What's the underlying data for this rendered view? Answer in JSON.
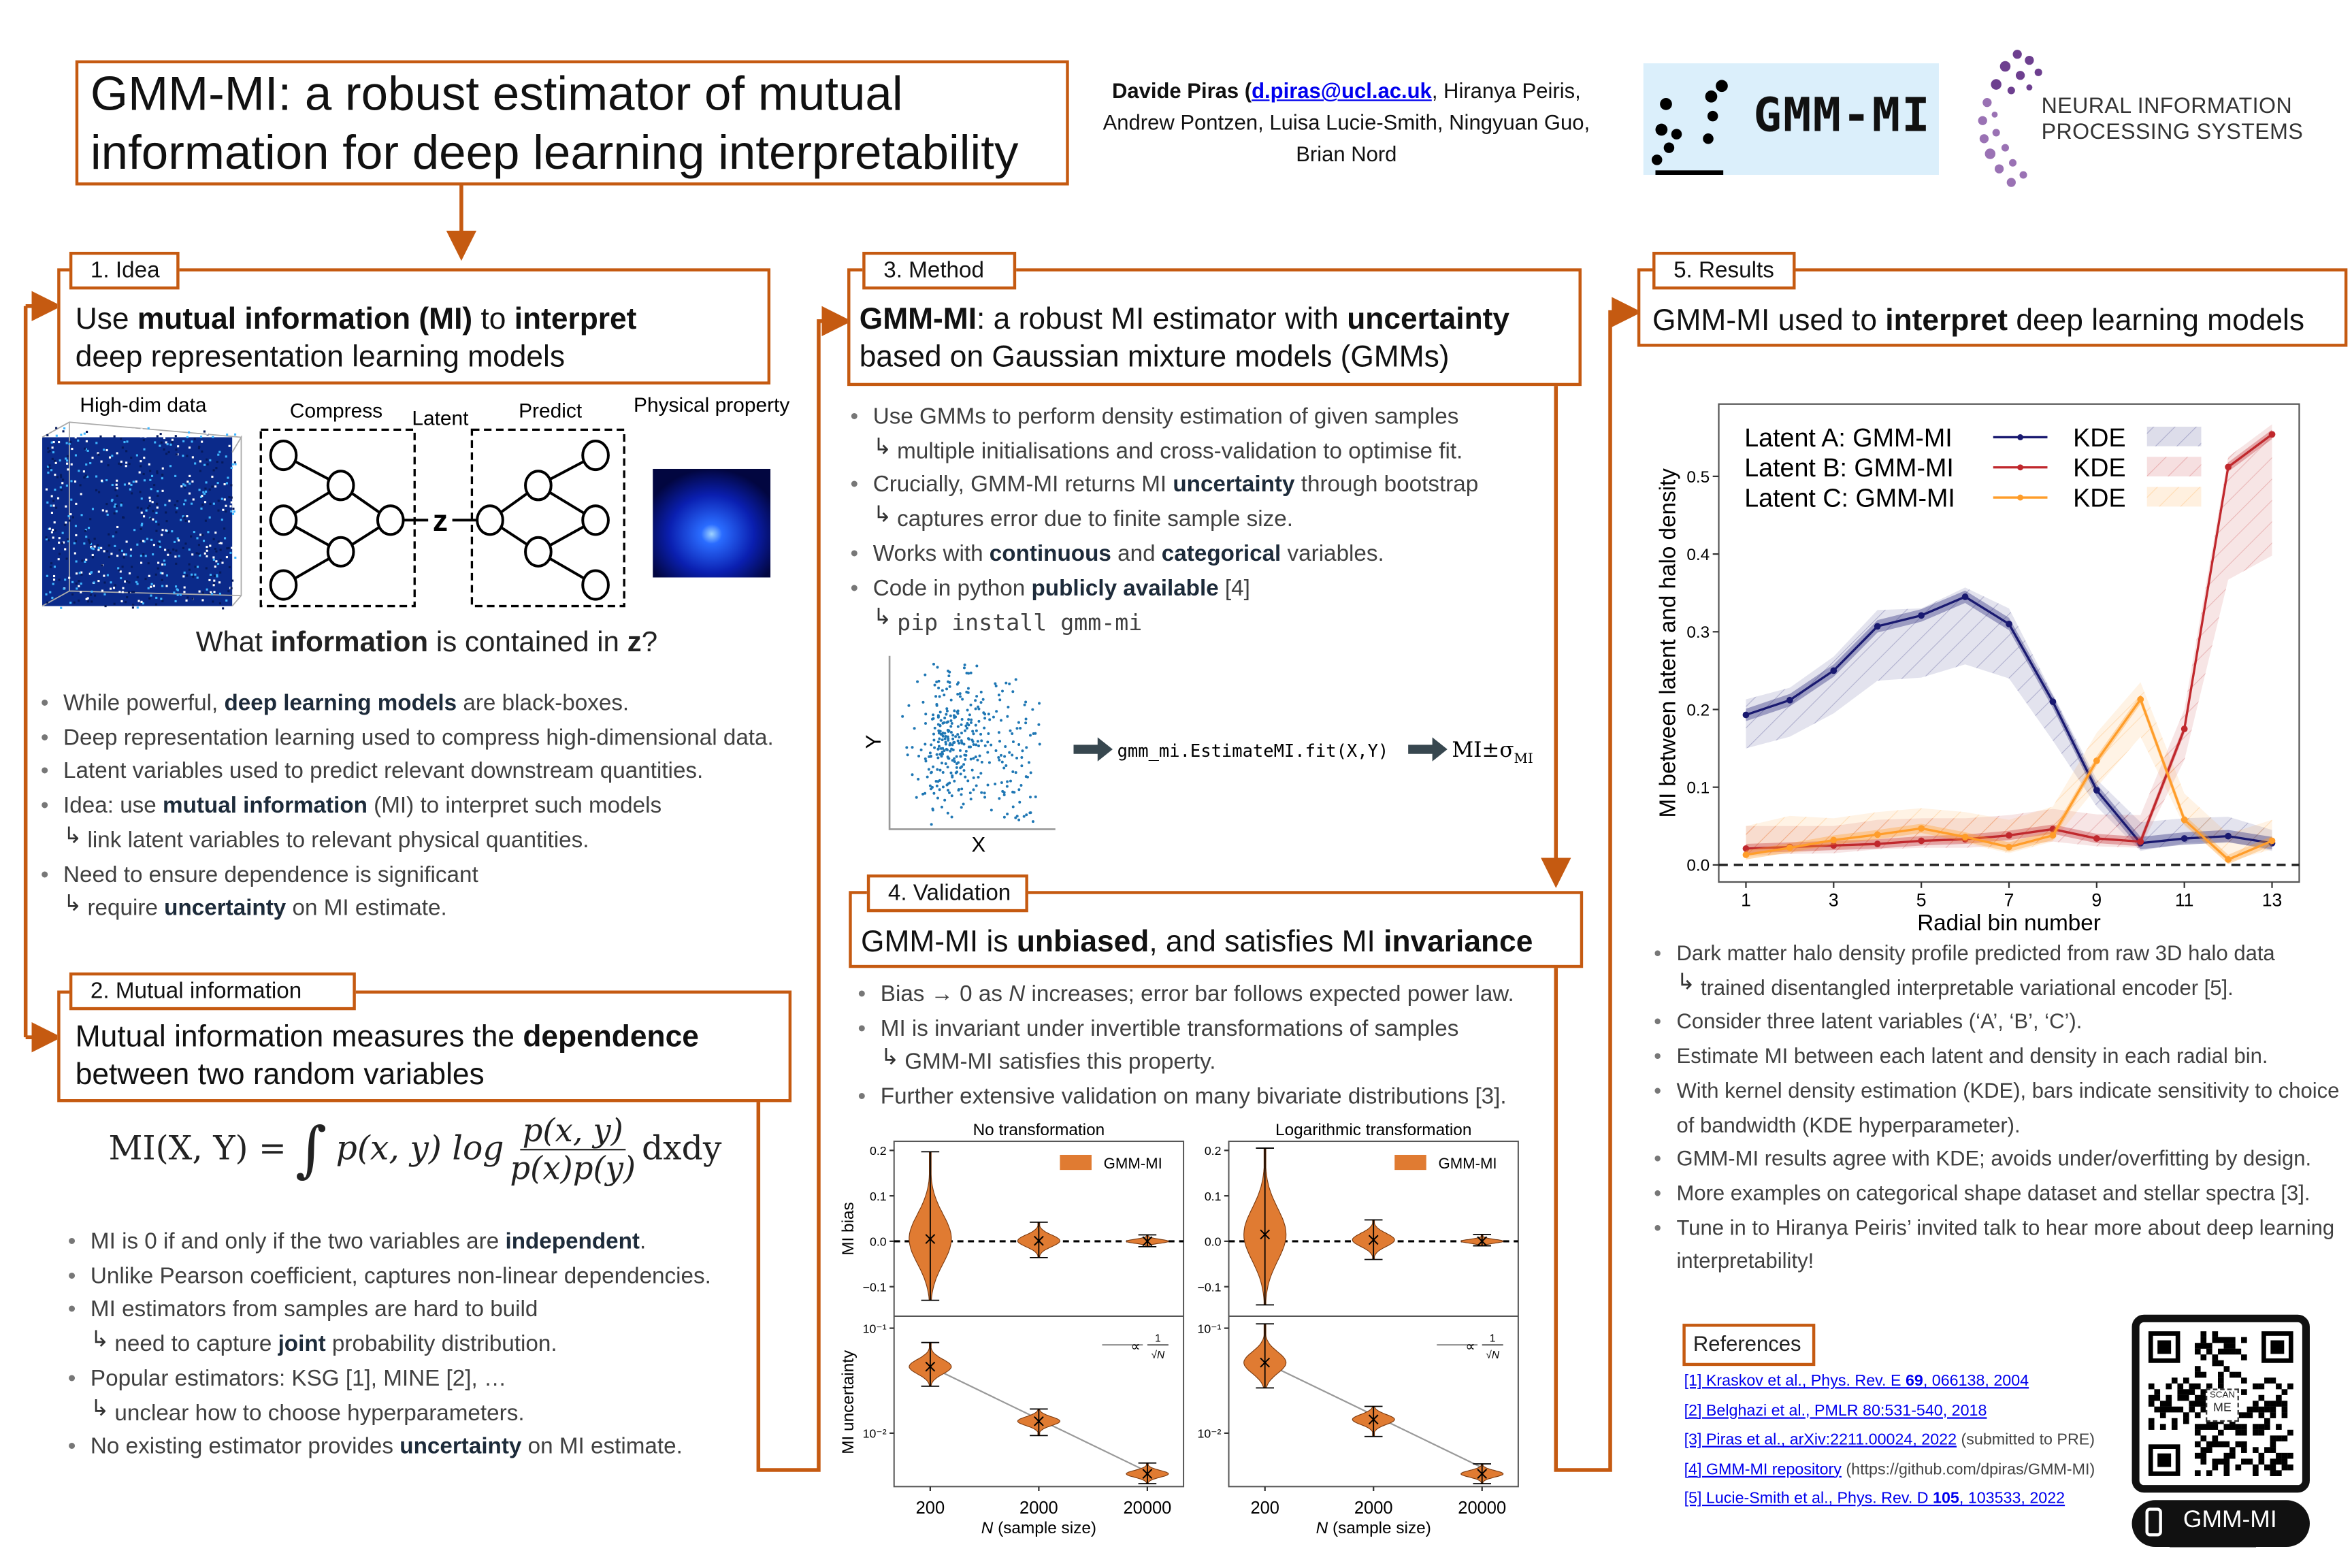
{
  "title": "GMM-MI: a robust estimator of mutual\ninformation for deep learning interpretability",
  "authors": [
    [
      "Davide Piras (",
      "b"
    ],
    [
      "d.piras@ucl.ac.uk",
      "ba"
    ],
    [
      ", Hiranya Peiris,\nAndrew Pontzen, Luisa Lucie-Smith, Ningyuan Guo,\nBrian Nord",
      ""
    ]
  ],
  "logos": {
    "gmm_mi": "GMM-MI",
    "neurips_line1": "NEURAL INFORMATION",
    "neurips_line2": "PROCESSING SYSTEMS"
  },
  "colors": {
    "accent": "#c55a11",
    "latent_a": "#191970",
    "latent_b": "#c0282d",
    "latent_c": "#ff9d2a",
    "violin": "#e07b32",
    "link": "#0000ee"
  },
  "idea": {
    "tab": "1. Idea",
    "header": [
      [
        "Use ",
        ""
      ],
      [
        "mutual information (MI)",
        "b"
      ],
      [
        " to ",
        ""
      ],
      [
        "interpret",
        "b"
      ],
      [
        "\ndeep representation learning models",
        ""
      ]
    ],
    "diagram": {
      "high_dim": "High-dim data",
      "compress": "Compress",
      "latent": "Latent",
      "predict": "Predict",
      "physical": "Physical property",
      "z": "z"
    },
    "question": [
      [
        "What ",
        ""
      ],
      [
        "information",
        "b"
      ],
      [
        " is contained in ",
        ""
      ],
      [
        "z",
        "b"
      ],
      [
        "?",
        ""
      ]
    ],
    "bullets": [
      {
        "text": [
          [
            "While powerful, ",
            ""
          ],
          [
            "deep learning models",
            "b"
          ],
          [
            " are black-boxes.",
            ""
          ]
        ]
      },
      {
        "text": [
          [
            "Deep representation learning used to compress high-dimensional data.",
            ""
          ]
        ]
      },
      {
        "text": [
          [
            "Latent variables used to predict relevant downstream quantities.",
            ""
          ]
        ]
      },
      {
        "text": [
          [
            "Idea: use ",
            ""
          ],
          [
            "mutual information",
            "b"
          ],
          [
            " (MI) to interpret such models",
            ""
          ]
        ],
        "sub": [
          [
            "link latent variables to relevant physical quantities.",
            ""
          ]
        ]
      },
      {
        "text": [
          [
            "Need to ensure dependence is significant",
            ""
          ]
        ],
        "sub": [
          [
            "require ",
            ""
          ],
          [
            "uncertainty",
            "b"
          ],
          [
            " on MI estimate.",
            ""
          ]
        ]
      }
    ]
  },
  "mi": {
    "tab": "2. Mutual information",
    "header": [
      [
        "Mutual information measures the ",
        ""
      ],
      [
        "dependence",
        "b"
      ],
      [
        "\nbetween two random variables",
        ""
      ]
    ],
    "equation": {
      "lhs": "MI(X, Y) =",
      "integral": "∫",
      "integrand": "p(x, y) log",
      "num": "p(x, y)",
      "den": "p(x)p(y)",
      "tail": "dxdy"
    },
    "bullets": [
      {
        "text": [
          [
            "MI is 0 if and only if the two variables are ",
            ""
          ],
          [
            "independent",
            "b"
          ],
          [
            ".",
            ""
          ]
        ]
      },
      {
        "text": [
          [
            "Unlike Pearson coefficient, captures non-linear dependencies.",
            ""
          ]
        ]
      },
      {
        "text": [
          [
            "MI estimators from samples are hard to build",
            ""
          ]
        ],
        "sub": [
          [
            "need to capture ",
            ""
          ],
          [
            "joint",
            "b"
          ],
          [
            " probability distribution.",
            ""
          ]
        ]
      },
      {
        "text": [
          [
            "Popular estimators: KSG [1], MINE [2], …",
            ""
          ]
        ],
        "sub": [
          [
            "unclear how to choose hyperparameters.",
            ""
          ]
        ]
      },
      {
        "text": [
          [
            "No existing estimator provides ",
            ""
          ],
          [
            "uncertainty",
            "b"
          ],
          [
            " on MI estimate.",
            ""
          ]
        ]
      }
    ]
  },
  "method": {
    "tab": "3. Method",
    "header": [
      [
        "GMM-MI",
        "b"
      ],
      [
        ": a robust MI estimator with ",
        ""
      ],
      [
        "uncertainty",
        "b"
      ],
      [
        "\nbased on Gaussian mixture models (GMMs)",
        ""
      ]
    ],
    "bullets": [
      {
        "text": [
          [
            "Use GMMs to perform density estimation of given samples",
            ""
          ]
        ],
        "sub": [
          [
            "multiple initialisations and cross-validation to optimise fit.",
            ""
          ]
        ]
      },
      {
        "text": [
          [
            "Crucially, GMM-MI returns MI ",
            ""
          ],
          [
            "uncertainty",
            "b"
          ],
          [
            " through bootstrap",
            ""
          ]
        ],
        "sub": [
          [
            "captures error due to finite sample size.",
            ""
          ]
        ]
      },
      {
        "text": [
          [
            "Works with ",
            ""
          ],
          [
            "continuous",
            "b"
          ],
          [
            " and ",
            ""
          ],
          [
            "categorical",
            "b"
          ],
          [
            " variables.",
            ""
          ]
        ]
      },
      {
        "text": [
          [
            "Code in python ",
            ""
          ],
          [
            "publicly available",
            "b"
          ],
          [
            " [4]",
            ""
          ]
        ],
        "sub": [
          [
            "pip install gmm-mi",
            "m"
          ]
        ]
      }
    ],
    "diagram": {
      "x_label": "X",
      "y_label": "Y",
      "code": "gmm_mi.EstimateMI.fit(X,Y)",
      "output": "MI±σ",
      "output_sub": "MI"
    }
  },
  "validation": {
    "tab": "4. Validation",
    "header": [
      [
        "GMM-MI is ",
        ""
      ],
      [
        "unbiased",
        "b"
      ],
      [
        ", and satisfies MI ",
        ""
      ],
      [
        "invariance",
        "b"
      ]
    ],
    "bullets": [
      {
        "text": [
          [
            "Bias → 0 as ",
            ""
          ],
          [
            "N",
            "i"
          ],
          [
            " increases; error bar follows expected power law.",
            ""
          ]
        ]
      },
      {
        "text": [
          [
            "MI is invariant under invertible transformations of samples",
            ""
          ]
        ],
        "sub": [
          [
            "GMM-MI satisfies this property.",
            ""
          ]
        ]
      },
      {
        "text": [
          [
            "Further extensive validation on many bivariate distributions [3].",
            ""
          ]
        ]
      }
    ]
  },
  "results": {
    "tab": "5. Results",
    "header": [
      [
        "GMM-MI used to ",
        ""
      ],
      [
        "interpret",
        "b"
      ],
      [
        " deep learning models",
        ""
      ]
    ],
    "bullets": [
      {
        "text": [
          [
            "Dark matter halo density profile predicted from raw 3D halo data",
            ""
          ]
        ],
        "sub": [
          [
            "trained disentangled interpretable variational encoder [5].",
            ""
          ]
        ]
      },
      {
        "text": [
          [
            "Consider three latent variables (‘A’, ‘B’, ‘C’).",
            ""
          ]
        ]
      },
      {
        "text": [
          [
            "Estimate MI between each latent and density in each radial bin.",
            ""
          ]
        ]
      },
      {
        "text": [
          [
            "With kernel density estimation (KDE), bars indicate sensitivity to choice of bandwidth (KDE hyperparameter).",
            ""
          ]
        ]
      },
      {
        "text": [
          [
            "GMM-MI results agree with KDE; avoids under/overfitting by design.",
            ""
          ]
        ]
      },
      {
        "text": [
          [
            "More examples on categorical shape dataset and stellar spectra [3].",
            ""
          ]
        ]
      },
      {
        "text": [
          [
            "Tune in to Hiranya Peiris’ invited talk to hear more about deep learning interpretability!",
            ""
          ]
        ]
      }
    ]
  },
  "references": {
    "title": "References",
    "items": [
      [
        [
          "[1] Kraskov et al., Phys. Rev. E ",
          "a"
        ],
        [
          "69",
          "ab"
        ],
        [
          ", 066138, 2004",
          "a"
        ]
      ],
      [
        [
          "[2] Belghazi et al., PMLR 80:531-540, 2018",
          "a"
        ]
      ],
      [
        [
          "[3] Piras et al., arXiv:2211.00024, 2022",
          "a"
        ],
        [
          " (submitted to PRE)",
          "g"
        ]
      ],
      [
        [
          "[4] GMM-MI repository",
          "a"
        ],
        [
          " (https://github.com/dpiras/GMM-MI)",
          "g"
        ]
      ],
      [
        [
          "[5] Lucie-Smith et al., Phys. Rev. D ",
          "a"
        ],
        [
          "105",
          "ab"
        ],
        [
          ", 103533, 2022",
          "a"
        ]
      ]
    ],
    "qr_scan": "SCAN",
    "qr_me": "ME",
    "qr_label": "GMM-MI"
  },
  "chart_data": [
    {
      "type": "line",
      "xlabel": "Radial bin number",
      "ylabel": "MI between latent and halo density",
      "x": [
        1,
        2,
        3,
        4,
        5,
        6,
        7,
        8,
        9,
        10,
        11,
        12,
        13
      ],
      "xticks": [
        "1",
        "3",
        "5",
        "7",
        "9",
        "11",
        "13"
      ],
      "yticks": [
        "0.0",
        "0.1",
        "0.2",
        "0.3",
        "0.4",
        "0.5"
      ],
      "xlim": [
        0.38,
        13.62
      ],
      "ylim": [
        -0.022,
        0.593
      ],
      "reference_line": 0.0,
      "legend_position": "top-left",
      "series": [
        {
          "name": "Latent A: GMM-MI",
          "kde_label": "KDE",
          "color": "#191970",
          "gmm_err": 0.008,
          "values": [
            0.193,
            0.212,
            0.25,
            0.307,
            0.321,
            0.345,
            0.31,
            0.21,
            0.096,
            0.028,
            0.034,
            0.037,
            0.028
          ],
          "kde_low": [
            0.15,
            0.165,
            0.195,
            0.237,
            0.241,
            0.258,
            0.24,
            0.16,
            0.075,
            0.018,
            0.028,
            0.03,
            0.018
          ],
          "kde_high": [
            0.213,
            0.228,
            0.268,
            0.328,
            0.33,
            0.357,
            0.33,
            0.22,
            0.11,
            0.055,
            0.06,
            0.062,
            0.045
          ]
        },
        {
          "name": "Latent B: GMM-MI",
          "kde_label": "KDE",
          "color": "#c0282d",
          "gmm_err": 0.006,
          "values": [
            0.021,
            0.023,
            0.025,
            0.027,
            0.031,
            0.033,
            0.038,
            0.046,
            0.034,
            0.03,
            0.175,
            0.512,
            0.554
          ],
          "kde_low": [
            0.012,
            0.014,
            0.015,
            0.02,
            0.022,
            0.022,
            0.025,
            0.03,
            0.024,
            0.022,
            0.135,
            0.367,
            0.398
          ],
          "kde_high": [
            0.05,
            0.05,
            0.05,
            0.058,
            0.06,
            0.06,
            0.064,
            0.072,
            0.065,
            0.064,
            0.2,
            0.525,
            0.567
          ]
        },
        {
          "name": "Latent C: GMM-MI",
          "kde_label": "KDE",
          "color": "#ff9d2a",
          "gmm_err": 0.006,
          "values": [
            0.013,
            0.022,
            0.032,
            0.039,
            0.047,
            0.036,
            0.023,
            0.038,
            0.134,
            0.213,
            0.058,
            0.007,
            0.031
          ],
          "kde_low": [
            0.01,
            0.015,
            0.02,
            0.025,
            0.03,
            0.028,
            0.015,
            0.03,
            0.1,
            0.165,
            0.05,
            0.004,
            0.02
          ],
          "kde_high": [
            0.05,
            0.063,
            0.06,
            0.068,
            0.073,
            0.068,
            0.058,
            0.075,
            0.17,
            0.235,
            0.092,
            0.04,
            0.058
          ]
        }
      ]
    },
    {
      "type": "violin",
      "categories": [
        "200",
        "2000",
        "20000"
      ],
      "xlabel_var": "N",
      "xlabel": " (sample size)",
      "ylabel_bias": "MI bias",
      "ylabel_uncertainty": "MI uncertainty",
      "bias_ylim": [
        -0.165,
        0.22
      ],
      "bias_ticks": [
        {
          "v": 0.2,
          "label": "0.2"
        },
        {
          "v": 0.1,
          "label": "0.1"
        },
        {
          "v": 0.0,
          "label": "0.0"
        },
        {
          "v": -0.1,
          "label": "−0.1"
        }
      ],
      "uncertainty_ylim": [
        0.0031,
        0.13
      ],
      "uncertainty_ticks": [
        {
          "v": 0.1,
          "label": "10⁻¹"
        },
        {
          "v": 0.01,
          "label": "10⁻²"
        }
      ],
      "legend_bias": "GMM-MI",
      "legend_uncertainty_prefix": "∝",
      "legend_uncertainty_num": "1",
      "legend_uncertainty_den": "√N",
      "panels": [
        {
          "title": "No transformation",
          "bias": [
            {
              "min": -0.13,
              "max": 0.197,
              "median": 0.005
            },
            {
              "min": -0.036,
              "max": 0.042,
              "median": 0.001
            },
            {
              "min": -0.012,
              "max": 0.014,
              "median": 0.0
            }
          ],
          "uncertainty": [
            {
              "min": 0.028,
              "max": 0.073,
              "median": 0.043
            },
            {
              "min": 0.0095,
              "max": 0.017,
              "median": 0.013
            },
            {
              "min": 0.0033,
              "max": 0.0052,
              "median": 0.0041
            }
          ]
        },
        {
          "title": "Logarithmic transformation",
          "bias": [
            {
              "min": -0.14,
              "max": 0.205,
              "median": 0.015
            },
            {
              "min": -0.04,
              "max": 0.047,
              "median": 0.003
            },
            {
              "min": -0.01,
              "max": 0.015,
              "median": 0.0
            }
          ],
          "uncertainty": [
            {
              "min": 0.027,
              "max": 0.11,
              "median": 0.047
            },
            {
              "min": 0.0093,
              "max": 0.018,
              "median": 0.0135
            },
            {
              "min": 0.0033,
              "max": 0.0051,
              "median": 0.0041
            }
          ]
        }
      ]
    }
  ]
}
